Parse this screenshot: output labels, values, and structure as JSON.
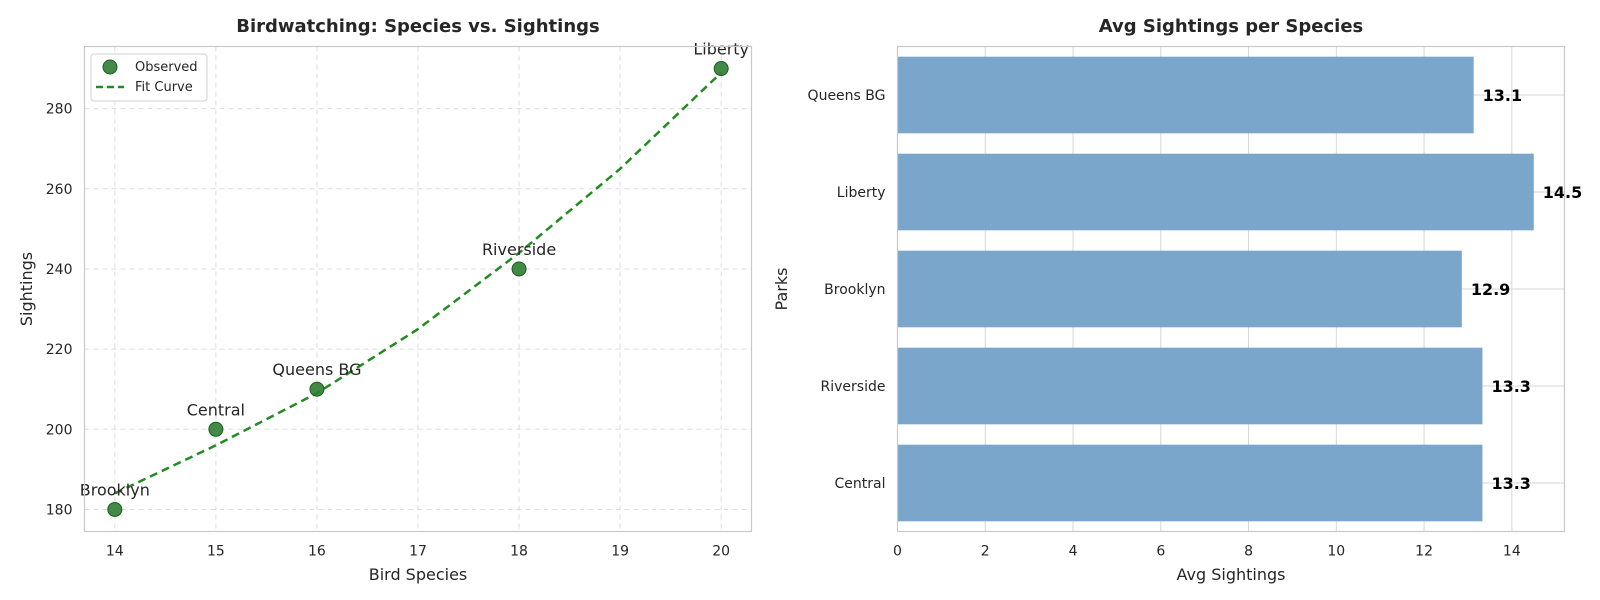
{
  "colors": {
    "scatter_fill": "#2e7d32",
    "scatter_edge": "#1b5e20",
    "fit_curve": "#228b22",
    "bar_fill": "#7ba6cb",
    "grid": "#dddddd",
    "frame": "#c8c8c8"
  },
  "chart_data": [
    {
      "type": "scatter",
      "title": "Birdwatching: Species vs. Sightings",
      "xlabel": "Bird Species",
      "ylabel": "Sightings",
      "xlim": [
        13.7,
        20.3
      ],
      "ylim": [
        174.5,
        295.5
      ],
      "x_ticks": [
        14,
        15,
        16,
        17,
        18,
        19,
        20
      ],
      "y_ticks": [
        180,
        200,
        220,
        240,
        260,
        280
      ],
      "grid": true,
      "grid_style": "dashed",
      "legend": {
        "placement": "top-left",
        "entries": [
          "Observed",
          "Fit Curve"
        ]
      },
      "series": [
        {
          "name": "Observed",
          "points": [
            {
              "label": "Brooklyn",
              "x": 14,
              "y": 180
            },
            {
              "label": "Central",
              "x": 15,
              "y": 200
            },
            {
              "label": "Queens BG",
              "x": 16,
              "y": 210
            },
            {
              "label": "Riverside",
              "x": 18,
              "y": 240
            },
            {
              "label": "Liberty",
              "x": 20,
              "y": 290
            }
          ]
        },
        {
          "name": "Fit Curve",
          "fit": "quadratic",
          "x": [
            14,
            15,
            16,
            17,
            18,
            19,
            20
          ],
          "y": [
            184,
            196,
            209,
            225,
            244,
            265,
            289
          ]
        }
      ]
    },
    {
      "type": "bar",
      "orientation": "horizontal",
      "title": "Avg Sightings per Species",
      "xlabel": "Avg Sightings",
      "ylabel": "Parks",
      "xlim": [
        0,
        15.2
      ],
      "x_ticks": [
        0,
        2,
        4,
        6,
        8,
        10,
        12,
        14
      ],
      "grid": true,
      "categories": [
        "Central",
        "Riverside",
        "Brooklyn",
        "Liberty",
        "Queens BG"
      ],
      "values": [
        13.33,
        13.33,
        12.86,
        14.5,
        13.13
      ],
      "value_labels": [
        "13.3",
        "13.3",
        "12.9",
        "14.5",
        "13.1"
      ]
    }
  ]
}
